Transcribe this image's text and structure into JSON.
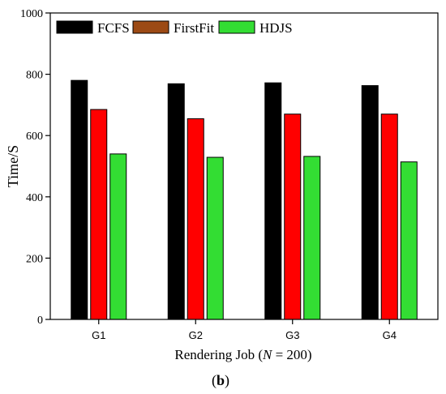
{
  "chart_data": {
    "type": "bar",
    "categories": [
      "G1",
      "G2",
      "G3",
      "G4"
    ],
    "series": [
      {
        "name": "FCFS",
        "values": [
          780,
          769,
          772,
          763
        ],
        "color": "#000000"
      },
      {
        "name": "FirstFit",
        "values": [
          685,
          655,
          670,
          670
        ],
        "color": "#ff0000",
        "legend_color": "#9c4a14"
      },
      {
        "name": "HDJS",
        "values": [
          540,
          529,
          532,
          514
        ],
        "color": "#33dd33"
      }
    ],
    "xlabel_prefix": "Rendering Job (",
    "xlabel_var": "N",
    "xlabel_suffix": " = 200)",
    "ylabel": "Time/S",
    "ylim": [
      0,
      1000
    ],
    "yticks": [
      0,
      200,
      400,
      600,
      800,
      1000
    ],
    "legend_position": "top-left",
    "grid": false
  },
  "panel_label": "(b)"
}
